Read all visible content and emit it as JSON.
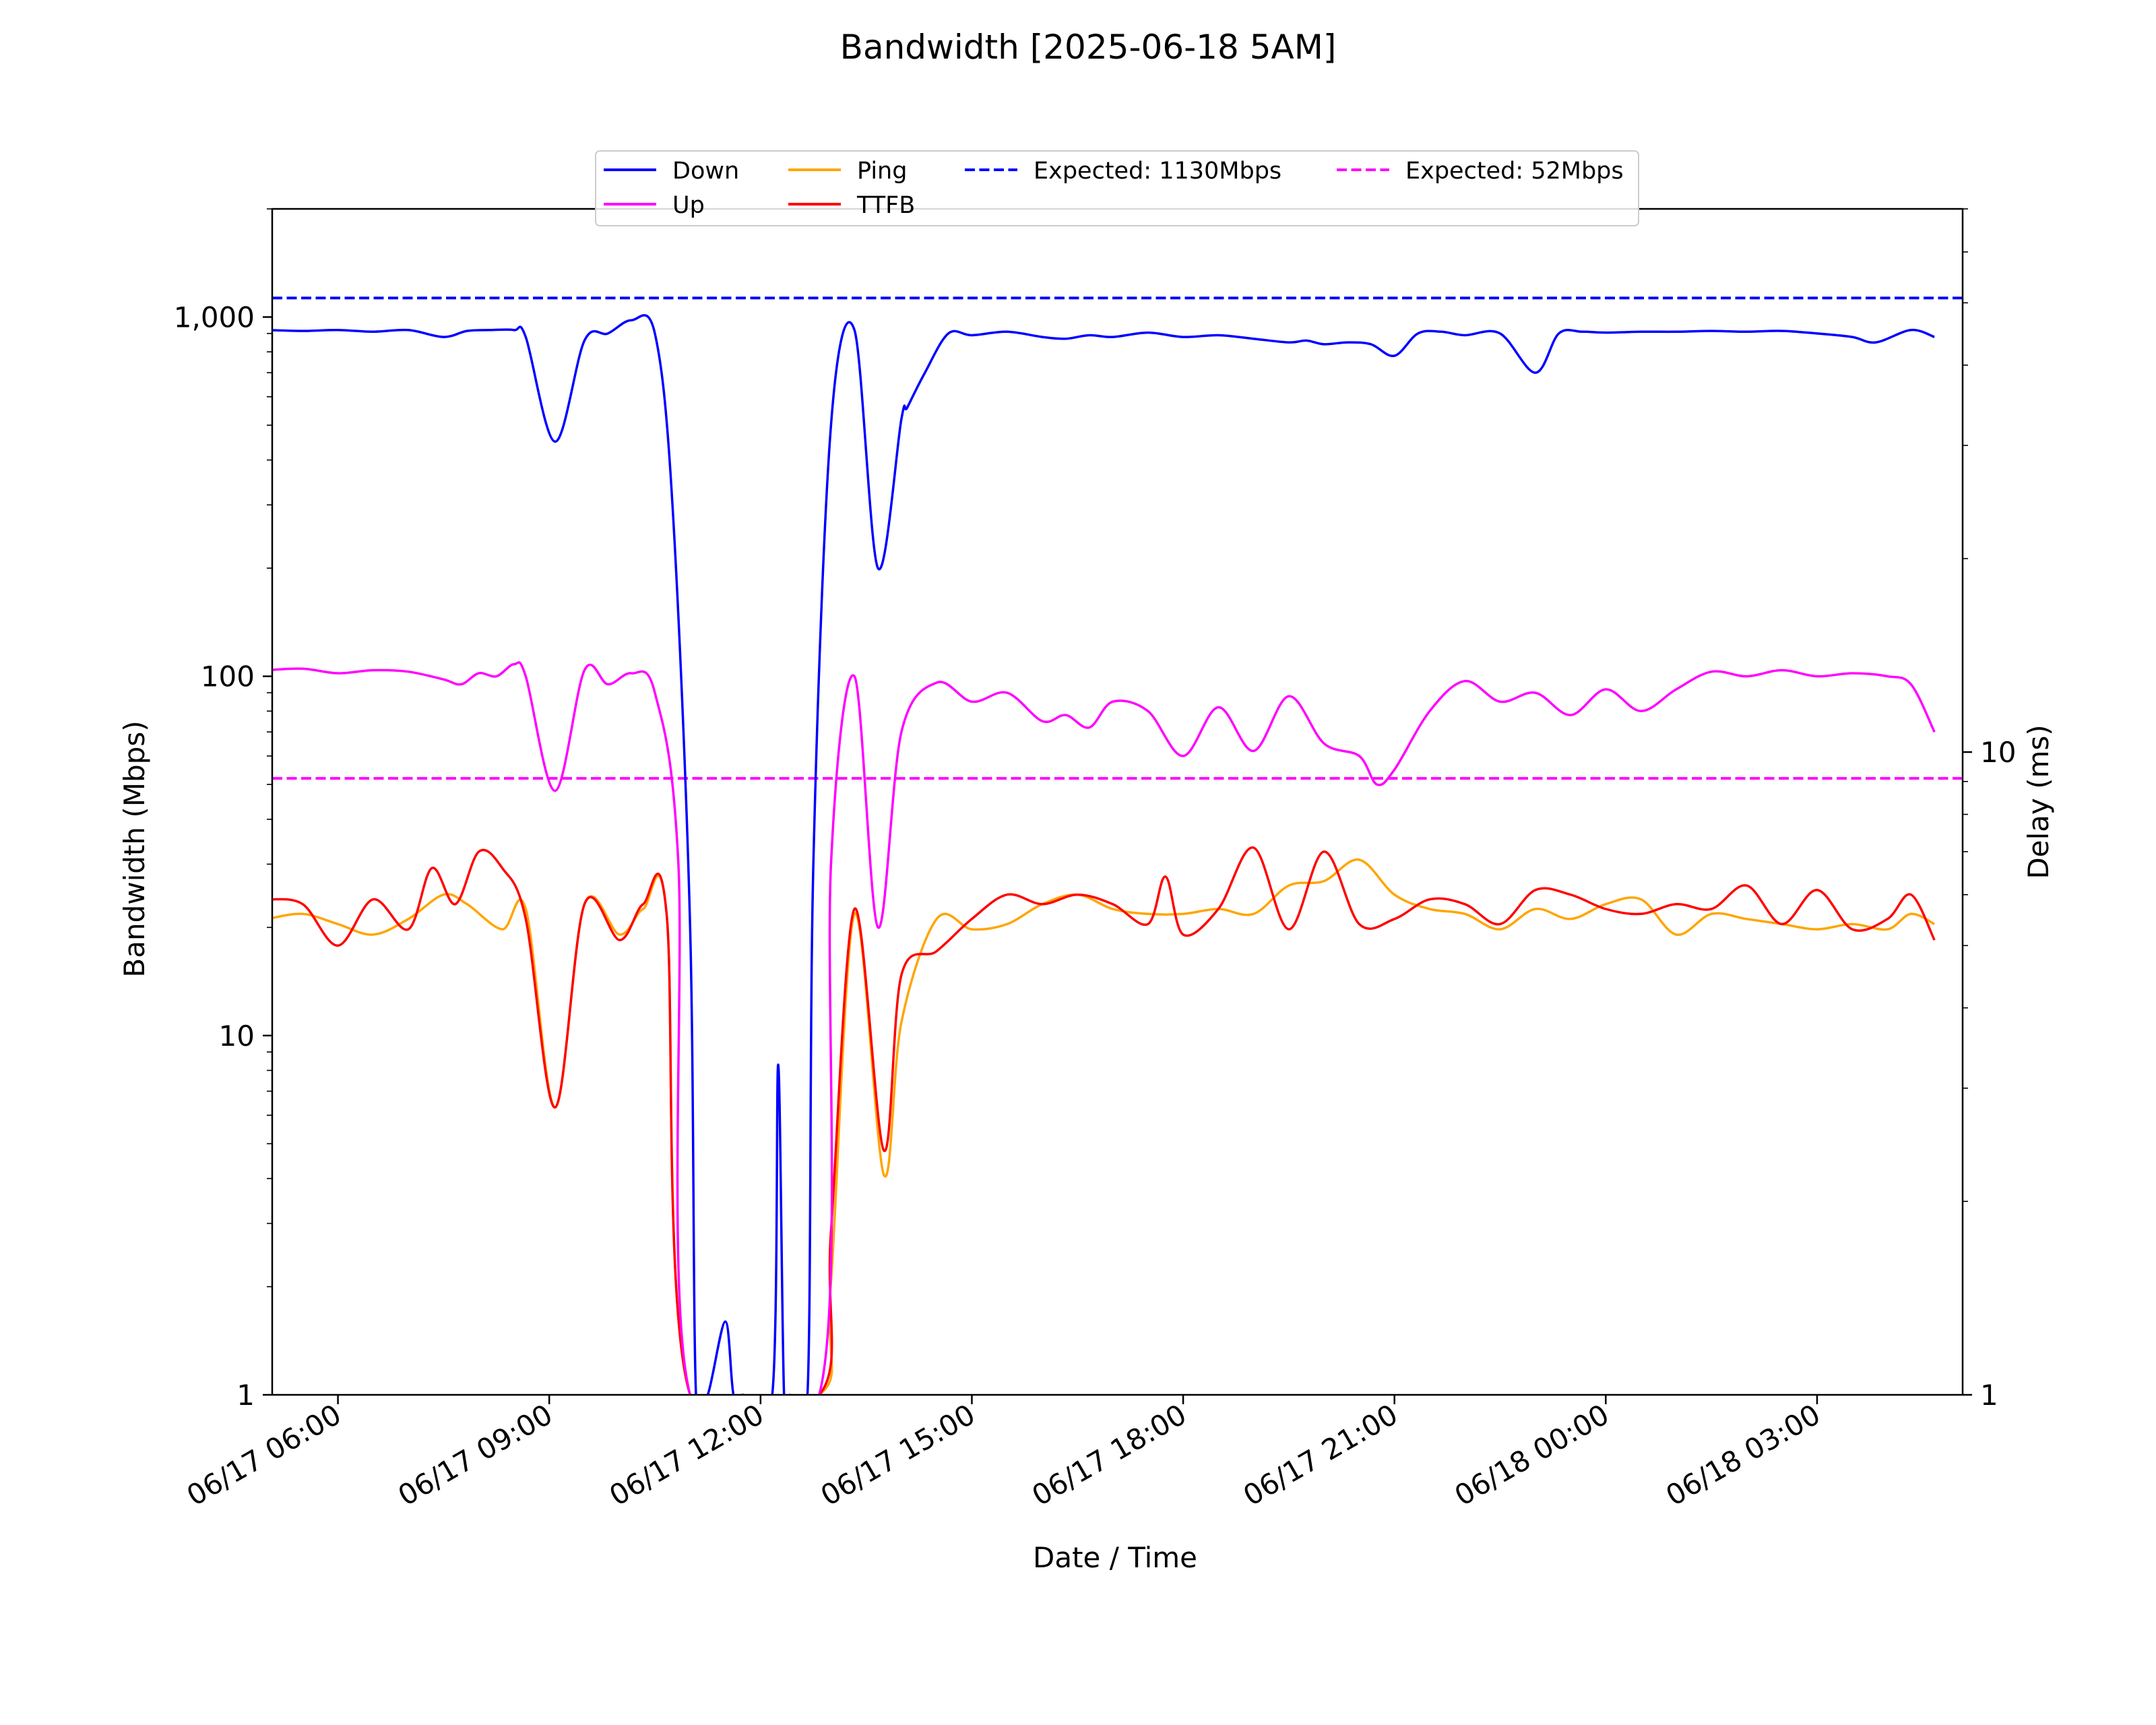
{
  "chart_data": {
    "type": "line",
    "title": "Bandwidth [2025-06-18 5AM]",
    "xlabel": "Date / Time",
    "ylabel": "Bandwidth (Mbps)",
    "y2label": "Delay (ms)",
    "yscale": "log",
    "y2scale": "log",
    "ylim": [
      1,
      2000
    ],
    "y2lim": [
      1,
      70
    ],
    "xlim": [
      "2025-06-17 05:04",
      "2025-06-18 05:04"
    ],
    "xticks": [
      "06/17 06:00",
      "06/17 09:00",
      "06/17 12:00",
      "06/17 15:00",
      "06/17 18:00",
      "06/17 21:00",
      "06/18 00:00",
      "06/18 03:00"
    ],
    "xtick_times": [
      "2025-06-17 06:00",
      "2025-06-17 09:00",
      "2025-06-17 12:00",
      "2025-06-17 15:00",
      "2025-06-17 18:00",
      "2025-06-17 21:00",
      "2025-06-18 00:00",
      "2025-06-18 03:00"
    ],
    "yticks": [
      "1",
      "10",
      "100",
      "1,000"
    ],
    "yticks_values": [
      1,
      10,
      100,
      1000
    ],
    "y2ticks": [
      "1",
      "10"
    ],
    "y2ticks_values": [
      1,
      10
    ],
    "grid": false,
    "legend_position": "top-center",
    "legend": [
      "Down",
      "Up",
      "Ping",
      "TTFB",
      "Expected: 1130Mbps",
      "Expected: 52Mbps"
    ],
    "reference_lines": [
      {
        "name": "Expected: 1130Mbps",
        "axis": "left",
        "value": 1130,
        "color": "#0000ff",
        "style": "dashed"
      },
      {
        "name": "Expected: 52Mbps",
        "axis": "left",
        "value": 52,
        "color": "#ff00ff",
        "style": "dashed"
      }
    ],
    "series": [
      {
        "name": "Down",
        "axis": "left",
        "color": "#0000ff",
        "x": [
          "2025-06-17 05:00",
          "2025-06-17 05:30",
          "2025-06-17 06:00",
          "2025-06-17 06:30",
          "2025-06-17 07:00",
          "2025-06-17 07:30",
          "2025-06-17 07:50",
          "2025-06-17 08:10",
          "2025-06-17 08:30",
          "2025-06-17 08:40",
          "2025-06-17 09:05",
          "2025-06-17 09:30",
          "2025-06-17 09:50",
          "2025-06-17 10:10",
          "2025-06-17 10:30",
          "2025-06-17 10:45",
          "2025-06-17 11:00",
          "2025-06-17 11:05",
          "2025-06-17 11:15",
          "2025-06-17 11:30",
          "2025-06-17 11:37",
          "2025-06-17 11:45",
          "2025-06-17 12:10",
          "2025-06-17 12:15",
          "2025-06-17 12:20",
          "2025-06-17 12:25",
          "2025-06-17 12:40",
          "2025-06-17 12:45",
          "2025-06-17 13:00",
          "2025-06-17 13:20",
          "2025-06-17 13:40",
          "2025-06-17 14:00",
          "2025-06-17 14:05",
          "2025-06-17 14:20",
          "2025-06-17 14:40",
          "2025-06-17 15:00",
          "2025-06-17 15:30",
          "2025-06-17 16:00",
          "2025-06-17 16:20",
          "2025-06-17 16:40",
          "2025-06-17 17:00",
          "2025-06-17 17:30",
          "2025-06-17 18:00",
          "2025-06-17 18:30",
          "2025-06-17 19:00",
          "2025-06-17 19:30",
          "2025-06-17 19:45",
          "2025-06-17 20:00",
          "2025-06-17 20:20",
          "2025-06-17 20:40",
          "2025-06-17 21:00",
          "2025-06-17 21:20",
          "2025-06-17 21:40",
          "2025-06-17 22:00",
          "2025-06-17 22:30",
          "2025-06-17 23:00",
          "2025-06-17 23:20",
          "2025-06-17 23:40",
          "2025-06-18 00:00",
          "2025-06-18 00:30",
          "2025-06-18 01:00",
          "2025-06-18 01:30",
          "2025-06-18 02:00",
          "2025-06-18 02:30",
          "2025-06-18 03:00",
          "2025-06-18 03:30",
          "2025-06-18 03:50",
          "2025-06-18 04:20",
          "2025-06-18 04:40"
        ],
        "y": [
          920,
          915,
          920,
          910,
          920,
          880,
          915,
          920,
          920,
          880,
          450,
          860,
          900,
          980,
          900,
          300,
          20,
          1,
          1,
          1.6,
          1,
          1,
          1,
          8.3,
          1,
          1,
          1,
          30,
          500,
          920,
          200,
          520,
          560,
          700,
          900,
          890,
          910,
          880,
          870,
          890,
          880,
          905,
          880,
          890,
          870,
          850,
          860,
          840,
          850,
          840,
          780,
          900,
          910,
          890,
          900,
          700,
          900,
          910,
          905,
          910,
          910,
          915,
          910,
          915,
          900,
          880,
          850,
          920,
          880
        ]
      },
      {
        "name": "Up",
        "axis": "left",
        "color": "#ff00ff",
        "x": [
          "2025-06-17 05:00",
          "2025-06-17 05:30",
          "2025-06-17 06:00",
          "2025-06-17 06:30",
          "2025-06-17 07:00",
          "2025-06-17 07:30",
          "2025-06-17 07:45",
          "2025-06-17 08:00",
          "2025-06-17 08:15",
          "2025-06-17 08:30",
          "2025-06-17 08:40",
          "2025-06-17 09:05",
          "2025-06-17 09:30",
          "2025-06-17 09:50",
          "2025-06-17 10:10",
          "2025-06-17 10:30",
          "2025-06-17 10:50",
          "2025-06-17 11:00",
          "2025-06-17 12:50",
          "2025-06-17 13:00",
          "2025-06-17 13:20",
          "2025-06-17 13:40",
          "2025-06-17 14:00",
          "2025-06-17 14:30",
          "2025-06-17 15:00",
          "2025-06-17 15:30",
          "2025-06-17 16:00",
          "2025-06-17 16:20",
          "2025-06-17 16:40",
          "2025-06-17 17:00",
          "2025-06-17 17:30",
          "2025-06-17 18:00",
          "2025-06-17 18:30",
          "2025-06-17 19:00",
          "2025-06-17 19:30",
          "2025-06-17 20:00",
          "2025-06-17 20:30",
          "2025-06-17 20:45",
          "2025-06-17 21:00",
          "2025-06-17 21:30",
          "2025-06-17 22:00",
          "2025-06-17 22:30",
          "2025-06-17 23:00",
          "2025-06-17 23:30",
          "2025-06-18 00:00",
          "2025-06-18 00:30",
          "2025-06-18 01:00",
          "2025-06-18 01:30",
          "2025-06-18 02:00",
          "2025-06-18 02:30",
          "2025-06-18 03:00",
          "2025-06-18 03:30",
          "2025-06-18 04:00",
          "2025-06-18 04:20",
          "2025-06-18 04:40"
        ],
        "y": [
          104,
          105,
          102,
          104,
          103,
          98,
          95,
          102,
          100,
          108,
          100,
          48,
          104,
          95,
          102,
          90,
          30,
          1,
          1,
          30,
          100,
          20,
          70,
          96,
          85,
          90,
          75,
          78,
          72,
          85,
          80,
          60,
          82,
          62,
          88,
          65,
          60,
          50,
          55,
          80,
          97,
          85,
          90,
          78,
          92,
          80,
          92,
          103,
          100,
          104,
          100,
          102,
          100,
          95,
          70
        ]
      },
      {
        "name": "Ping",
        "axis": "right",
        "color": "#ffa500",
        "x": [
          "2025-06-17 05:00",
          "2025-06-17 05:30",
          "2025-06-17 06:00",
          "2025-06-17 06:30",
          "2025-06-17 07:00",
          "2025-06-17 07:30",
          "2025-06-17 07:50",
          "2025-06-17 08:20",
          "2025-06-17 08:40",
          "2025-06-17 09:05",
          "2025-06-17 09:30",
          "2025-06-17 10:00",
          "2025-06-17 10:20",
          "2025-06-17 10:40",
          "2025-06-17 11:00",
          "2025-06-17 12:50",
          "2025-06-17 13:00",
          "2025-06-17 13:20",
          "2025-06-17 13:45",
          "2025-06-17 14:00",
          "2025-06-17 14:30",
          "2025-06-17 15:00",
          "2025-06-17 15:30",
          "2025-06-17 16:00",
          "2025-06-17 16:30",
          "2025-06-17 17:00",
          "2025-06-17 17:30",
          "2025-06-17 18:00",
          "2025-06-17 18:30",
          "2025-06-17 19:00",
          "2025-06-17 19:30",
          "2025-06-17 20:00",
          "2025-06-17 20:30",
          "2025-06-17 21:00",
          "2025-06-17 21:30",
          "2025-06-17 22:00",
          "2025-06-17 22:30",
          "2025-06-17 23:00",
          "2025-06-17 23:30",
          "2025-06-18 00:00",
          "2025-06-18 00:30",
          "2025-06-18 01:00",
          "2025-06-18 01:30",
          "2025-06-18 02:00",
          "2025-06-18 02:30",
          "2025-06-18 03:00",
          "2025-06-18 03:30",
          "2025-06-18 04:00",
          "2025-06-18 04:20",
          "2025-06-18 04:40"
        ],
        "y": [
          5.5,
          5.6,
          5.4,
          5.2,
          5.5,
          6.0,
          5.8,
          5.3,
          5.7,
          2.8,
          5.8,
          5.2,
          5.7,
          5.6,
          1,
          1,
          1.5,
          5.6,
          2.2,
          3.8,
          5.5,
          5.3,
          5.4,
          5.8,
          6.0,
          5.7,
          5.6,
          5.6,
          5.7,
          5.6,
          6.2,
          6.3,
          6.8,
          6.0,
          5.7,
          5.6,
          5.3,
          5.7,
          5.5,
          5.8,
          5.9,
          5.2,
          5.6,
          5.5,
          5.4,
          5.3,
          5.4,
          5.3,
          5.6,
          5.4
        ]
      },
      {
        "name": "TTFB",
        "axis": "right",
        "color": "#ff0000",
        "x": [
          "2025-06-17 05:00",
          "2025-06-17 05:30",
          "2025-06-17 06:00",
          "2025-06-17 06:30",
          "2025-06-17 07:00",
          "2025-06-17 07:20",
          "2025-06-17 07:40",
          "2025-06-17 08:00",
          "2025-06-17 08:20",
          "2025-06-17 08:40",
          "2025-06-17 09:05",
          "2025-06-17 09:30",
          "2025-06-17 10:00",
          "2025-06-17 10:20",
          "2025-06-17 10:40",
          "2025-06-17 11:00",
          "2025-06-17 12:50",
          "2025-06-17 13:00",
          "2025-06-17 13:20",
          "2025-06-17 13:45",
          "2025-06-17 14:00",
          "2025-06-17 14:30",
          "2025-06-17 15:00",
          "2025-06-17 15:30",
          "2025-06-17 16:00",
          "2025-06-17 16:30",
          "2025-06-17 17:00",
          "2025-06-17 17:30",
          "2025-06-17 17:45",
          "2025-06-17 18:00",
          "2025-06-17 18:30",
          "2025-06-17 19:00",
          "2025-06-17 19:30",
          "2025-06-17 20:00",
          "2025-06-17 20:30",
          "2025-06-17 21:00",
          "2025-06-17 21:30",
          "2025-06-17 22:00",
          "2025-06-17 22:30",
          "2025-06-17 23:00",
          "2025-06-17 23:30",
          "2025-06-18 00:00",
          "2025-06-18 00:30",
          "2025-06-18 01:00",
          "2025-06-18 01:30",
          "2025-06-18 02:00",
          "2025-06-18 02:30",
          "2025-06-18 03:00",
          "2025-06-18 03:30",
          "2025-06-18 04:00",
          "2025-06-18 04:20",
          "2025-06-18 04:40"
        ],
        "y": [
          5.9,
          5.8,
          5.0,
          5.9,
          5.3,
          6.6,
          5.8,
          7.0,
          6.6,
          5.5,
          2.8,
          5.8,
          5.1,
          5.8,
          5.6,
          1,
          1,
          1.8,
          5.7,
          2.4,
          4.5,
          4.9,
          5.5,
          6.0,
          5.8,
          6.0,
          5.8,
          5.4,
          6.4,
          5.2,
          5.7,
          7.1,
          5.3,
          7.0,
          5.4,
          5.5,
          5.9,
          5.8,
          5.4,
          6.1,
          6.0,
          5.7,
          5.6,
          5.8,
          5.7,
          6.2,
          5.4,
          6.1,
          5.3,
          5.5,
          6.0,
          5.1
        ]
      }
    ]
  }
}
